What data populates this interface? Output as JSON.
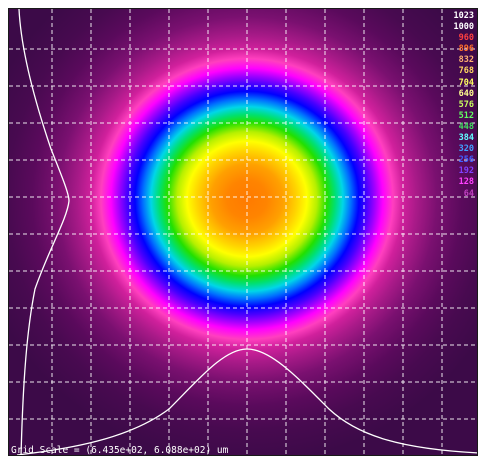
{
  "legend": {
    "entries": [
      {
        "label": "1023",
        "color": "#ffffff"
      },
      {
        "label": "1000",
        "color": "#ffffff"
      },
      {
        "label": "960",
        "color": "#ff4040"
      },
      {
        "label": "896",
        "color": "#ff6f2a"
      },
      {
        "label": "832",
        "color": "#ffb070"
      },
      {
        "label": "768",
        "color": "#ffd860"
      },
      {
        "label": "704",
        "color": "#ffff60"
      },
      {
        "label": "640",
        "color": "#ffff90"
      },
      {
        "label": "576",
        "color": "#c8ff60"
      },
      {
        "label": "512",
        "color": "#60ff60"
      },
      {
        "label": "448",
        "color": "#40e060"
      },
      {
        "label": "384",
        "color": "#60ffff"
      },
      {
        "label": "320",
        "color": "#40a0ff"
      },
      {
        "label": "256",
        "color": "#4060ff"
      },
      {
        "label": "192",
        "color": "#8040ff"
      },
      {
        "label": "128",
        "color": "#ff40ff"
      },
      {
        "label": "64",
        "color": "#c040c0"
      }
    ]
  },
  "caption": {
    "scale_text": "Grid Scale = (6.435e+02, 6.088e+02) um"
  },
  "colors": {
    "grid_line": "#ffffff",
    "profile_line": "#ffffff",
    "background": "#3c0a48"
  }
}
